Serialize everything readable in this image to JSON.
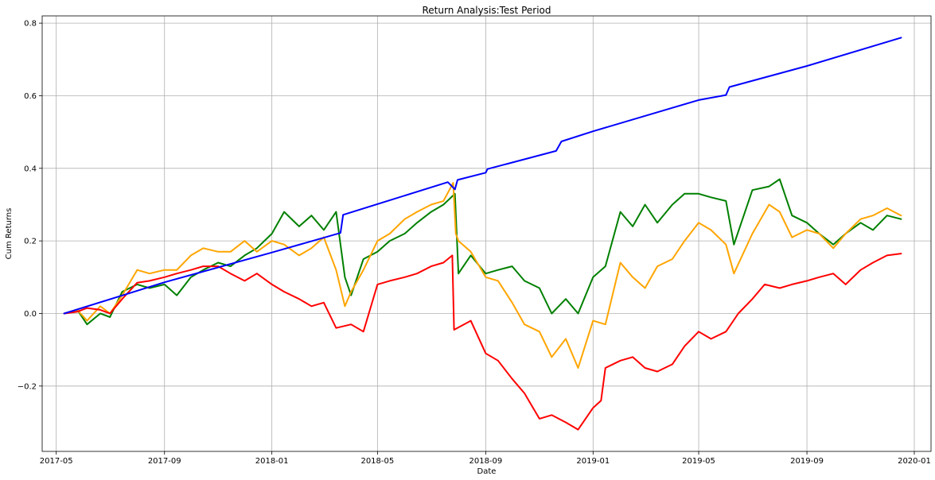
{
  "chart_data": {
    "type": "line",
    "title": "Return Analysis:Test Period",
    "xlabel": "Date",
    "ylabel": "Cum Returns",
    "x_ticks": [
      "2017-05",
      "2017-09",
      "2018-01",
      "2018-05",
      "2018-09",
      "2019-01",
      "2019-05",
      "2019-09",
      "2020-01"
    ],
    "y_ticks": [
      -0.2,
      0.0,
      0.2,
      0.4,
      0.6,
      0.8
    ],
    "y_tick_labels": [
      "−0.2",
      "0.0",
      "0.2",
      "0.4",
      "0.6",
      "0.8"
    ],
    "xlim": [
      "2017-04-15",
      "2020-01-20"
    ],
    "ylim": [
      -0.38,
      0.82
    ],
    "grid": true,
    "legend": "none",
    "series": [
      {
        "color": "#0000ff",
        "x": [
          "2017-05-10",
          "2017-09-01",
          "2018-01-01",
          "2018-03-20",
          "2018-03-23",
          "2018-07-20",
          "2018-07-28",
          "2018-07-31",
          "2018-09-01",
          "2018-09-03",
          "2018-11-20",
          "2018-11-26",
          "2019-01-01",
          "2019-05-01",
          "2019-06-01",
          "2019-06-05",
          "2019-09-01",
          "2019-12-17"
        ],
        "y": [
          0.0,
          0.086,
          0.168,
          0.222,
          0.272,
          0.362,
          0.342,
          0.368,
          0.388,
          0.398,
          0.448,
          0.474,
          0.502,
          0.588,
          0.602,
          0.624,
          0.682,
          0.76
        ]
      },
      {
        "color": "#008000",
        "x": [
          "2017-05-10",
          "2017-05-25",
          "2017-06-05",
          "2017-06-20",
          "2017-07-01",
          "2017-07-15",
          "2017-08-01",
          "2017-08-15",
          "2017-09-01",
          "2017-09-15",
          "2017-10-01",
          "2017-10-15",
          "2017-11-01",
          "2017-11-15",
          "2017-12-01",
          "2017-12-15",
          "2018-01-01",
          "2018-01-15",
          "2018-02-01",
          "2018-02-15",
          "2018-03-01",
          "2018-03-15",
          "2018-03-25",
          "2018-04-01",
          "2018-04-15",
          "2018-05-01",
          "2018-05-15",
          "2018-06-01",
          "2018-06-15",
          "2018-07-01",
          "2018-07-15",
          "2018-07-28",
          "2018-08-01",
          "2018-08-15",
          "2018-09-01",
          "2018-09-15",
          "2018-10-01",
          "2018-10-15",
          "2018-11-01",
          "2018-11-15",
          "2018-12-01",
          "2018-12-15",
          "2019-01-01",
          "2019-01-15",
          "2019-02-01",
          "2019-02-15",
          "2019-03-01",
          "2019-03-15",
          "2019-04-01",
          "2019-04-15",
          "2019-05-01",
          "2019-05-15",
          "2019-06-01",
          "2019-06-10",
          "2019-07-01",
          "2019-07-20",
          "2019-08-01",
          "2019-08-15",
          "2019-09-01",
          "2019-09-15",
          "2019-10-01",
          "2019-10-15",
          "2019-11-01",
          "2019-11-15",
          "2019-12-01",
          "2019-12-17"
        ],
        "y": [
          0.0,
          0.01,
          -0.03,
          0.0,
          -0.01,
          0.06,
          0.08,
          0.07,
          0.08,
          0.05,
          0.1,
          0.12,
          0.14,
          0.13,
          0.16,
          0.18,
          0.22,
          0.28,
          0.24,
          0.27,
          0.23,
          0.28,
          0.1,
          0.05,
          0.15,
          0.17,
          0.2,
          0.22,
          0.25,
          0.28,
          0.3,
          0.33,
          0.11,
          0.16,
          0.11,
          0.12,
          0.13,
          0.09,
          0.07,
          0.0,
          0.04,
          0.0,
          0.1,
          0.13,
          0.28,
          0.24,
          0.3,
          0.25,
          0.3,
          0.33,
          0.33,
          0.32,
          0.31,
          0.19,
          0.34,
          0.35,
          0.37,
          0.27,
          0.25,
          0.22,
          0.19,
          0.22,
          0.25,
          0.23,
          0.27,
          0.26
        ]
      },
      {
        "color": "#ffa500",
        "x": [
          "2017-05-10",
          "2017-05-25",
          "2017-06-05",
          "2017-06-20",
          "2017-07-01",
          "2017-07-15",
          "2017-08-01",
          "2017-08-15",
          "2017-09-01",
          "2017-09-15",
          "2017-10-01",
          "2017-10-15",
          "2017-11-01",
          "2017-11-15",
          "2017-12-01",
          "2017-12-15",
          "2018-01-01",
          "2018-01-15",
          "2018-02-01",
          "2018-02-15",
          "2018-03-01",
          "2018-03-15",
          "2018-03-25",
          "2018-04-01",
          "2018-04-15",
          "2018-05-01",
          "2018-05-15",
          "2018-06-01",
          "2018-06-15",
          "2018-07-01",
          "2018-07-15",
          "2018-07-26",
          "2018-07-29",
          "2018-08-01",
          "2018-08-15",
          "2018-09-01",
          "2018-09-15",
          "2018-10-01",
          "2018-10-15",
          "2018-11-01",
          "2018-11-15",
          "2018-12-01",
          "2018-12-15",
          "2019-01-01",
          "2019-01-15",
          "2019-02-01",
          "2019-02-15",
          "2019-03-01",
          "2019-03-15",
          "2019-04-01",
          "2019-04-15",
          "2019-05-01",
          "2019-05-15",
          "2019-06-01",
          "2019-06-10",
          "2019-07-01",
          "2019-07-20",
          "2019-08-01",
          "2019-08-15",
          "2019-09-01",
          "2019-09-15",
          "2019-10-01",
          "2019-10-15",
          "2019-11-01",
          "2019-11-15",
          "2019-12-01",
          "2019-12-17"
        ],
        "y": [
          0.0,
          0.01,
          -0.02,
          0.02,
          0.0,
          0.05,
          0.12,
          0.11,
          0.12,
          0.12,
          0.16,
          0.18,
          0.17,
          0.17,
          0.2,
          0.17,
          0.2,
          0.19,
          0.16,
          0.18,
          0.21,
          0.12,
          0.02,
          0.06,
          0.12,
          0.2,
          0.22,
          0.26,
          0.28,
          0.3,
          0.31,
          0.36,
          0.22,
          0.2,
          0.17,
          0.1,
          0.09,
          0.03,
          -0.03,
          -0.05,
          -0.12,
          -0.07,
          -0.15,
          -0.02,
          -0.03,
          0.14,
          0.1,
          0.07,
          0.13,
          0.15,
          0.2,
          0.25,
          0.23,
          0.19,
          0.11,
          0.22,
          0.3,
          0.28,
          0.21,
          0.23,
          0.22,
          0.18,
          0.22,
          0.26,
          0.27,
          0.29,
          0.27
        ]
      },
      {
        "color": "#ff0000",
        "x": [
          "2017-05-10",
          "2017-05-25",
          "2017-06-05",
          "2017-06-20",
          "2017-07-01",
          "2017-07-15",
          "2017-08-01",
          "2017-08-15",
          "2017-09-01",
          "2017-09-15",
          "2017-10-01",
          "2017-10-15",
          "2017-11-01",
          "2017-11-15",
          "2017-12-01",
          "2017-12-15",
          "2018-01-01",
          "2018-01-15",
          "2018-02-01",
          "2018-02-15",
          "2018-03-01",
          "2018-03-15",
          "2018-04-01",
          "2018-04-15",
          "2018-05-01",
          "2018-05-15",
          "2018-06-01",
          "2018-06-15",
          "2018-07-01",
          "2018-07-15",
          "2018-07-25",
          "2018-07-27",
          "2018-08-15",
          "2018-09-01",
          "2018-09-15",
          "2018-10-01",
          "2018-10-15",
          "2018-11-01",
          "2018-11-15",
          "2018-12-01",
          "2018-12-15",
          "2019-01-01",
          "2019-01-10",
          "2019-01-15",
          "2019-02-01",
          "2019-02-15",
          "2019-03-01",
          "2019-03-15",
          "2019-04-01",
          "2019-04-15",
          "2019-05-01",
          "2019-05-15",
          "2019-06-01",
          "2019-06-15",
          "2019-07-01",
          "2019-07-15",
          "2019-08-01",
          "2019-08-15",
          "2019-09-01",
          "2019-09-15",
          "2019-10-01",
          "2019-10-15",
          "2019-11-01",
          "2019-11-15",
          "2019-12-01",
          "2019-12-17"
        ],
        "y": [
          0.0,
          0.005,
          0.015,
          0.01,
          0.0,
          0.04,
          0.085,
          0.09,
          0.1,
          0.11,
          0.12,
          0.13,
          0.13,
          0.11,
          0.09,
          0.11,
          0.08,
          0.06,
          0.04,
          0.02,
          0.03,
          -0.04,
          -0.03,
          -0.05,
          0.08,
          0.09,
          0.1,
          0.11,
          0.13,
          0.14,
          0.16,
          -0.045,
          -0.02,
          -0.11,
          -0.13,
          -0.18,
          -0.22,
          -0.29,
          -0.28,
          -0.3,
          -0.32,
          -0.26,
          -0.24,
          -0.15,
          -0.13,
          -0.12,
          -0.15,
          -0.16,
          -0.14,
          -0.09,
          -0.05,
          -0.07,
          -0.05,
          0.0,
          0.04,
          0.08,
          0.07,
          0.08,
          0.09,
          0.1,
          0.11,
          0.08,
          0.12,
          0.14,
          0.16,
          0.165
        ]
      }
    ]
  }
}
